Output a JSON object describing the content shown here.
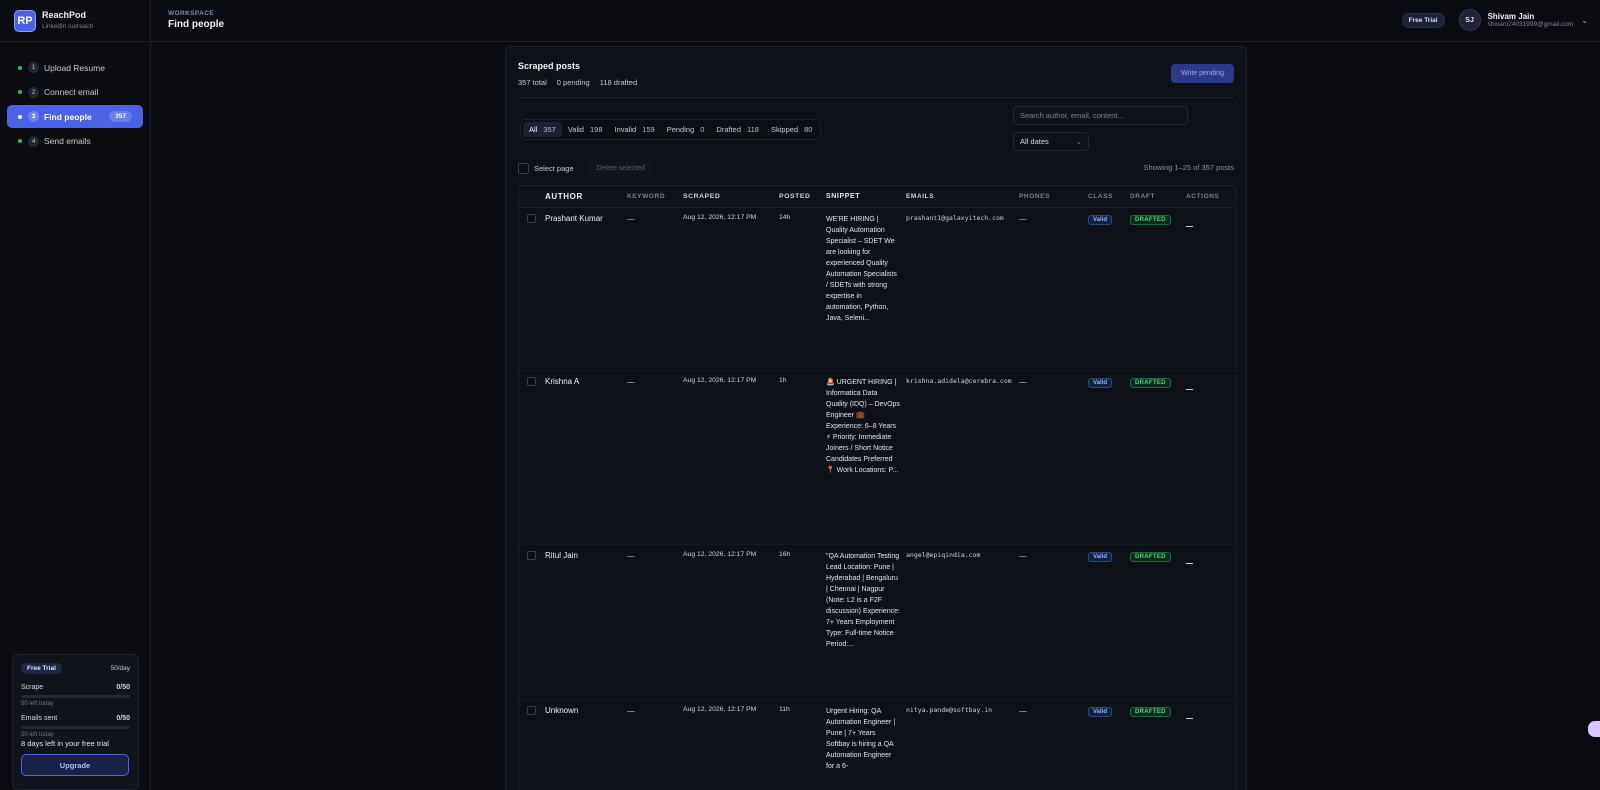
{
  "brand": {
    "logo": "RP",
    "name": "ReachPod",
    "subtitle": "Linkedin outreach"
  },
  "nav": [
    {
      "num": "1",
      "label": "Upload Resume",
      "active": false,
      "badge": ""
    },
    {
      "num": "2",
      "label": "Connect email",
      "active": false,
      "badge": ""
    },
    {
      "num": "3",
      "label": "Find people",
      "active": true,
      "badge": "357"
    },
    {
      "num": "4",
      "label": "Send emails",
      "active": false,
      "badge": ""
    }
  ],
  "trial": {
    "pill": "Free Trial",
    "rate": "50/day",
    "scrape_label": "Scrape",
    "scrape_value": "0/50",
    "scrape_fraction": 0,
    "scrape_left": "50 left today",
    "emails_label": "Emails sent",
    "emails_value": "0/50",
    "emails_fraction": 0,
    "emails_left": "50 left today",
    "days_left": "8 days left in your free trial",
    "upgrade_label": "Upgrade"
  },
  "header": {
    "workspace_label": "WORKSPACE",
    "title": "Find people",
    "free_pill": "Free Trial",
    "avatar": "SJ",
    "user_name": "Shivam Jain",
    "user_email": "shivam24031999@gmail.com"
  },
  "panel": {
    "title": "Scraped posts",
    "stats": [
      "357 total",
      "0 pending",
      "118 drafted"
    ],
    "write_label": "Write pending",
    "filters": [
      {
        "label": "All",
        "count": "357",
        "active": true
      },
      {
        "label": "Valid",
        "count": "198",
        "active": false
      },
      {
        "label": "Invalid",
        "count": "159",
        "active": false
      },
      {
        "label": "Pending",
        "count": "0",
        "active": false
      },
      {
        "label": "Drafted",
        "count": "118",
        "active": false
      },
      {
        "label": "Skipped",
        "count": "80",
        "active": false
      }
    ],
    "search_placeholder": "Search author, email, content...",
    "date_select": "All dates",
    "select_page_label": "Select page",
    "delete_label": "Delete selected",
    "showing": "Showing 1–25 of 357 posts"
  },
  "table": {
    "columns": [
      "AUTHOR",
      "KEYWORD",
      "SCRAPED",
      "POSTED",
      "SNIPPET",
      "EMAILS",
      "PHONES",
      "CLASS",
      "DRAFT",
      "ACTIONS"
    ],
    "rows": [
      {
        "author": "Prashant Kumar",
        "keyword": "—",
        "scraped": "Aug 12, 2026, 12:17 PM",
        "posted": "14h",
        "snippet": "WE'RE HIRING | Quality Automation Specialist – SDET We are looking for experienced Quality Automation Specialists / SDETs with strong expertise in automation, Python, Java, Seleni...",
        "email": "prashant1@galaxyitech.com",
        "phones": "—",
        "class": "Valid",
        "draft": "DRAFTED"
      },
      {
        "author": "Krishna A",
        "keyword": "—",
        "scraped": "Aug 12, 2026, 12:17 PM",
        "posted": "1h",
        "snippet": "🚨 URGENT HIRING | Informatica Data Quality (IDQ) – DevOps Engineer 💼 Experience: 6–8 Years ⚡ Priority: Immediate Joiners / Short Notice Candidates Preferred 📍 Work Locations: P...",
        "email": "krishna.adidela@cerebra.com",
        "phones": "—",
        "class": "Valid",
        "draft": "DRAFTED"
      },
      {
        "author": "Ritul Jain",
        "keyword": "—",
        "scraped": "Aug 12, 2026, 12:17 PM",
        "posted": "16h",
        "snippet": "\"QA Automation Testing Lead Location: Pune | Hyderabad | Bengaluru | Chennai | Nagpur (Note: L2 is a F2F discussion) Experience: 7+ Years Employment Type: Full-time Notice Period:...",
        "email": "angel@epiqindia.com",
        "phones": "—",
        "class": "Valid",
        "draft": "DRAFTED"
      },
      {
        "author": "Unknown",
        "keyword": "—",
        "scraped": "Aug 12, 2026, 12:17 PM",
        "posted": "11h",
        "snippet": "Urgent Hiring: QA Automation Engineer | Pune | 7+ Years Softbay is hiring a QA Automation Engineer for a 6-",
        "email": "nitya.pande@softbay.in",
        "phones": "—",
        "class": "Valid",
        "draft": "DRAFTED"
      }
    ]
  }
}
